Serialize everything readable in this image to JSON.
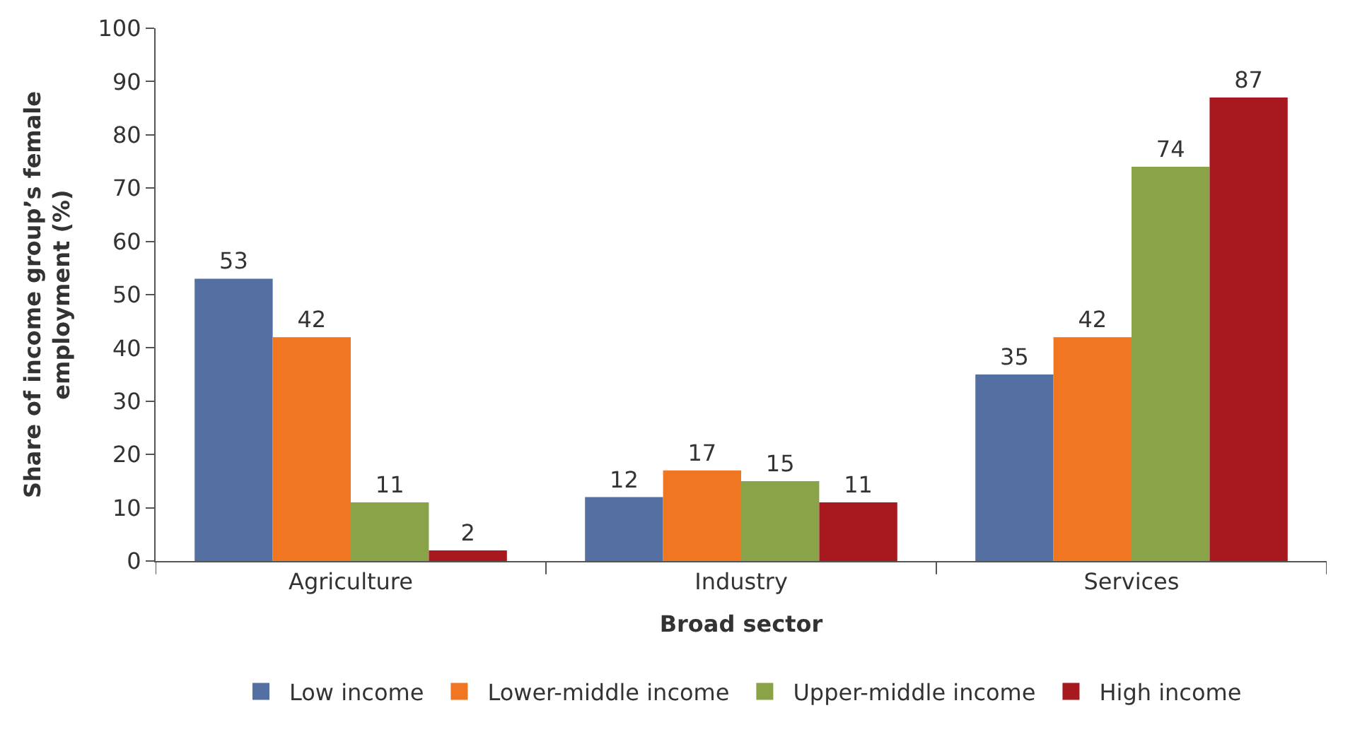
{
  "chart_data": {
    "type": "bar",
    "xlabel": "Broad sector",
    "ylabel": "Share of income group’s female employment (%)",
    "categories": [
      "Agriculture",
      "Industry",
      "Services"
    ],
    "series": [
      {
        "name": "Low income",
        "color": "#5470a3",
        "values": [
          53,
          12,
          35
        ]
      },
      {
        "name": "Lower-middle income",
        "color": "#f07622",
        "values": [
          42,
          17,
          42
        ]
      },
      {
        "name": "Upper-middle income",
        "color": "#8aa348",
        "values": [
          11,
          15,
          74
        ]
      },
      {
        "name": "High income",
        "color": "#a8191f",
        "values": [
          2,
          11,
          87
        ]
      }
    ],
    "ylim": [
      0,
      100
    ],
    "yticks": [
      0,
      10,
      20,
      30,
      40,
      50,
      60,
      70,
      80,
      90,
      100
    ],
    "data_labels": true,
    "legend": "bottom"
  }
}
